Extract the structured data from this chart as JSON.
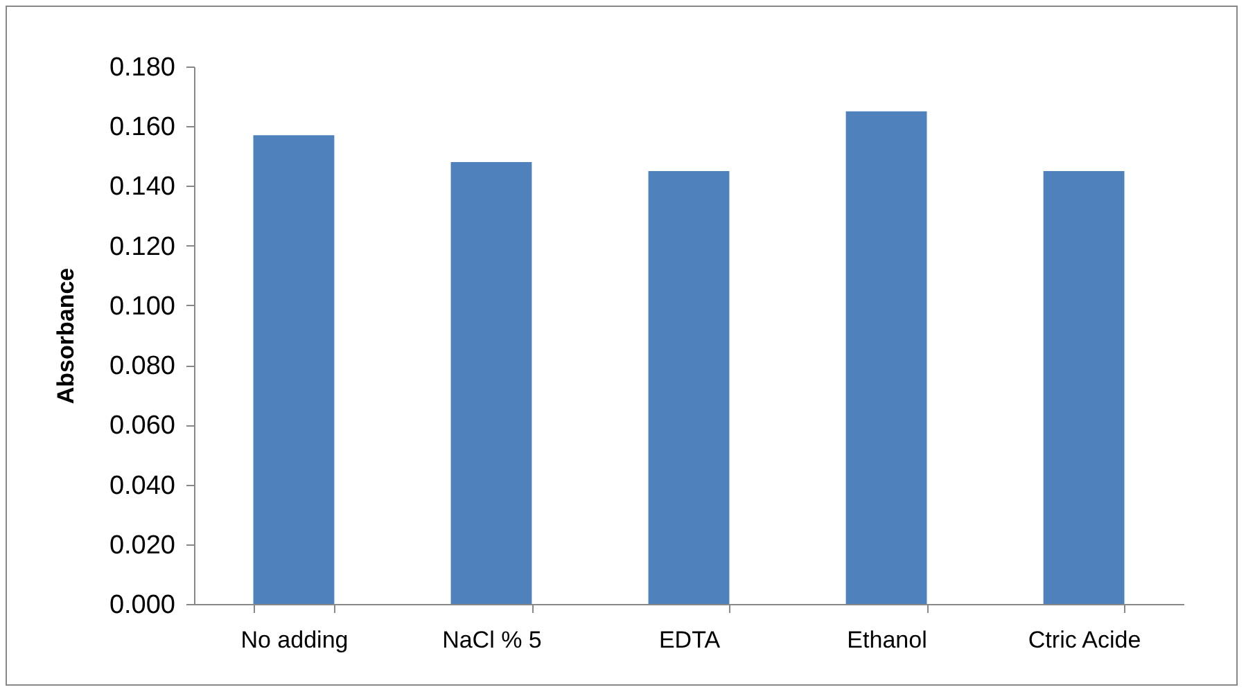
{
  "chart_data": {
    "type": "bar",
    "ylabel": "Absorbance",
    "categories": [
      "No adding",
      "NaCl % 5",
      "EDTA",
      "Ethanol",
      "Ctric Acide"
    ],
    "values": [
      0.157,
      0.148,
      0.145,
      0.165,
      0.145
    ],
    "color": "#4f81bd",
    "ylim": [
      0,
      0.18
    ],
    "yticks": [
      {
        "value": 0,
        "label": "0.000"
      },
      {
        "value": 0.02,
        "label": "0.020"
      },
      {
        "value": 0.04,
        "label": "0.040"
      },
      {
        "value": 0.06,
        "label": "0.060"
      },
      {
        "value": 0.08,
        "label": "0.080"
      },
      {
        "value": 0.1,
        "label": "0.100"
      },
      {
        "value": 0.12,
        "label": "0.120"
      },
      {
        "value": 0.14,
        "label": "0.140"
      },
      {
        "value": 0.16,
        "label": "0.160"
      },
      {
        "value": 0.18,
        "label": "0.180"
      }
    ],
    "grid": false
  }
}
